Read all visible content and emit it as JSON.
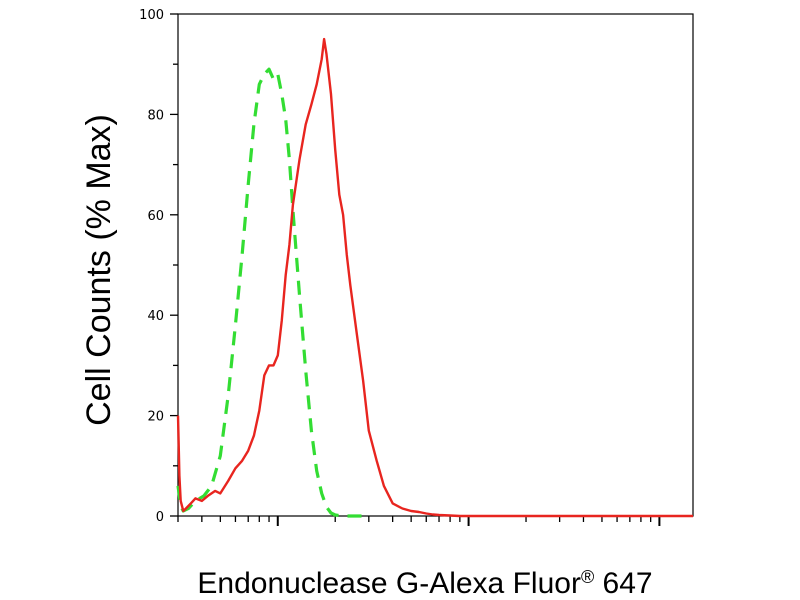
{
  "chart_data": {
    "type": "line",
    "xlabel": "Endonuclease G-Alexa Fluor",
    "xlabel_sup": "®",
    "xlabel_suffix": " 647",
    "ylabel": "Cell Counts (% Max)",
    "x_scale": "log",
    "xlim": [
      0.3,
      150
    ],
    "ylim": [
      0,
      100
    ],
    "y_ticks": [
      0,
      20,
      40,
      60,
      80,
      100
    ],
    "grid": false,
    "colors": {
      "solid": "#e8251f",
      "dashed": "#33dd33"
    },
    "series": [
      {
        "style": "dashed",
        "x": [
          0.3,
          0.31,
          0.32,
          0.34,
          0.37,
          0.41,
          0.45,
          0.5,
          0.55,
          0.6,
          0.65,
          0.7,
          0.75,
          0.8,
          0.85,
          0.9,
          0.95,
          1.0,
          1.05,
          1.1,
          1.15,
          1.2,
          1.3,
          1.4,
          1.5,
          1.6,
          1.7,
          1.8,
          1.9,
          2.0,
          2.2,
          2.4,
          2.7,
          3.0
        ],
        "y": [
          6,
          2,
          1,
          1.5,
          3,
          4,
          6,
          12,
          24,
          38,
          52,
          66,
          78,
          86,
          88,
          89,
          87,
          88,
          84,
          79,
          71,
          61,
          44,
          29,
          17,
          9,
          4.5,
          1.8,
          0.6,
          0.2,
          0,
          0,
          0,
          0
        ]
      },
      {
        "style": "solid",
        "x": [
          0.3,
          0.302,
          0.305,
          0.31,
          0.32,
          0.33,
          0.35,
          0.37,
          0.4,
          0.43,
          0.47,
          0.5,
          0.55,
          0.6,
          0.65,
          0.7,
          0.75,
          0.8,
          0.85,
          0.9,
          0.95,
          1.0,
          1.05,
          1.1,
          1.15,
          1.2,
          1.3,
          1.4,
          1.5,
          1.6,
          1.7,
          1.75,
          1.8,
          1.9,
          2.0,
          2.1,
          2.2,
          2.3,
          2.4,
          2.6,
          2.8,
          3.0,
          3.3,
          3.6,
          4.0,
          4.5,
          5.0,
          5.5,
          6.0,
          6.5,
          7.0,
          8.0,
          9.0,
          10,
          20,
          50,
          100,
          150
        ],
        "y": [
          20,
          15,
          8,
          3,
          1,
          1.5,
          2.5,
          3.5,
          3,
          4,
          5,
          4.5,
          7,
          9.5,
          11,
          13,
          16,
          21,
          28,
          30,
          30,
          32,
          39,
          48,
          54,
          62,
          71,
          78,
          82,
          86,
          91,
          95,
          92,
          84,
          73,
          64,
          60,
          52,
          46,
          36,
          27,
          17,
          11,
          6,
          2.5,
          1.5,
          1,
          0.8,
          0.5,
          0.3,
          0.2,
          0.1,
          0,
          0,
          0,
          0,
          0,
          0
        ]
      }
    ]
  }
}
